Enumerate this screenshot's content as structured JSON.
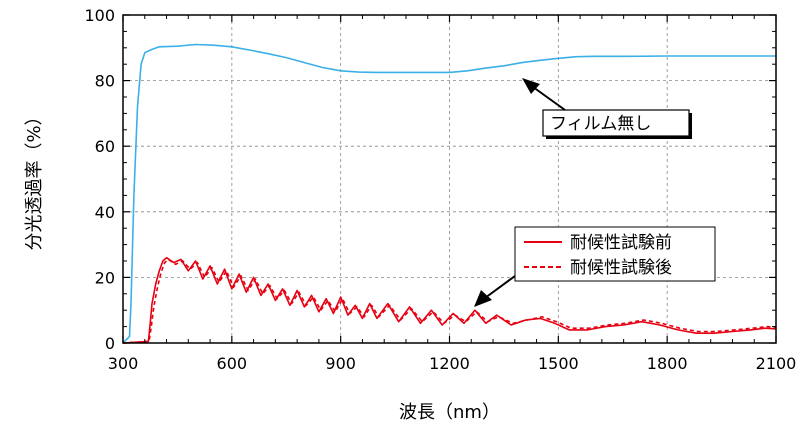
{
  "colors": {
    "no_film": "#3bb0e6",
    "before": "#e60012",
    "after": "#e60012",
    "grid": "#888888"
  },
  "chart_data": {
    "type": "line",
    "xlabel": "波長（nm）",
    "ylabel": "分光透過率（%）",
    "xlim": [
      300,
      2100
    ],
    "ylim": [
      0,
      100
    ],
    "xticks": [
      "300",
      "600",
      "900",
      "1200",
      "1500",
      "1800",
      "2100"
    ],
    "yticks": [
      "0",
      "20",
      "40",
      "60",
      "80",
      "100"
    ],
    "grid": true,
    "legend": {
      "placement": "center-right",
      "entries": [
        "耐候性試験前",
        "耐候性試験後"
      ]
    },
    "annotation": "フィルム無し",
    "series": [
      {
        "name": "フィルム無し",
        "style": "solid",
        "color_key": "no_film",
        "x": [
          300,
          318,
          322,
          330,
          340,
          350,
          360,
          380,
          400,
          450,
          500,
          550,
          600,
          650,
          700,
          750,
          800,
          850,
          900,
          950,
          1000,
          1050,
          1100,
          1150,
          1200,
          1250,
          1300,
          1350,
          1400,
          1450,
          1500,
          1550,
          1600,
          1700,
          1800,
          1900,
          2000,
          2100
        ],
        "y": [
          0,
          2,
          12,
          45,
          72,
          85,
          88.5,
          89.5,
          90.3,
          90.5,
          91,
          90.8,
          90.3,
          89.3,
          88.2,
          87,
          85.5,
          84,
          83,
          82.6,
          82.5,
          82.5,
          82.5,
          82.5,
          82.5,
          83,
          83.8,
          84.5,
          85.5,
          86.2,
          86.8,
          87.3,
          87.4,
          87.4,
          87.5,
          87.5,
          87.5,
          87.5
        ]
      },
      {
        "name": "耐候性試験前",
        "style": "solid",
        "color_key": "before",
        "x": [
          300,
          370,
          375,
          380,
          390,
          400,
          410,
          420,
          440,
          460,
          480,
          500,
          520,
          540,
          560,
          580,
          600,
          620,
          640,
          660,
          680,
          700,
          720,
          740,
          760,
          780,
          800,
          820,
          840,
          860,
          880,
          900,
          920,
          940,
          960,
          980,
          1000,
          1030,
          1060,
          1090,
          1120,
          1150,
          1180,
          1210,
          1240,
          1270,
          1300,
          1330,
          1370,
          1410,
          1450,
          1490,
          1530,
          1580,
          1630,
          1680,
          1730,
          1780,
          1830,
          1880,
          1930,
          1980,
          2030,
          2070,
          2100
        ],
        "y": [
          0,
          0.5,
          6,
          12,
          18,
          22,
          25,
          26,
          24.5,
          25.5,
          22,
          25,
          19.5,
          23.5,
          18,
          22.5,
          16.5,
          21,
          15.5,
          20,
          14.5,
          18,
          13,
          16.5,
          11.5,
          16,
          11,
          14.5,
          9.5,
          13.5,
          9,
          14,
          8.5,
          11.5,
          7.5,
          12,
          7.5,
          12,
          6.5,
          11,
          6,
          10,
          5.5,
          9,
          6,
          10,
          6,
          8.5,
          5.5,
          7,
          7.5,
          6,
          4,
          4,
          5,
          5.5,
          6.5,
          5.5,
          4,
          3,
          3,
          3.5,
          4,
          4.5,
          4.3
        ]
      },
      {
        "name": "耐候性試験後",
        "style": "dashed",
        "color_key": "after",
        "x": [
          300,
          372,
          378,
          385,
          395,
          405,
          415,
          425,
          445,
          465,
          485,
          505,
          525,
          545,
          565,
          585,
          605,
          625,
          645,
          665,
          685,
          705,
          725,
          745,
          765,
          785,
          805,
          825,
          845,
          865,
          885,
          905,
          925,
          945,
          965,
          985,
          1005,
          1035,
          1065,
          1095,
          1125,
          1155,
          1185,
          1215,
          1245,
          1275,
          1305,
          1335,
          1375,
          1415,
          1455,
          1495,
          1535,
          1585,
          1635,
          1685,
          1735,
          1785,
          1835,
          1885,
          1935,
          1985,
          2035,
          2075,
          2100
        ],
        "y": [
          0,
          0.5,
          5,
          11,
          17,
          21.5,
          24.5,
          25.5,
          24,
          25,
          22.5,
          24.5,
          20,
          23,
          18.5,
          22,
          17,
          20.5,
          16,
          19.5,
          15,
          17.5,
          13.5,
          16,
          12,
          15.5,
          11.5,
          14,
          10,
          13,
          9.5,
          13.5,
          9,
          11,
          8,
          11.5,
          8,
          11.5,
          7,
          10.5,
          6.5,
          9.5,
          6,
          8.5,
          6.5,
          9.5,
          6.5,
          8,
          6,
          7,
          8,
          6.5,
          4.5,
          4.5,
          5.5,
          6,
          7,
          6,
          4.5,
          3.5,
          3.5,
          4,
          4.5,
          5,
          4.8
        ]
      }
    ]
  }
}
